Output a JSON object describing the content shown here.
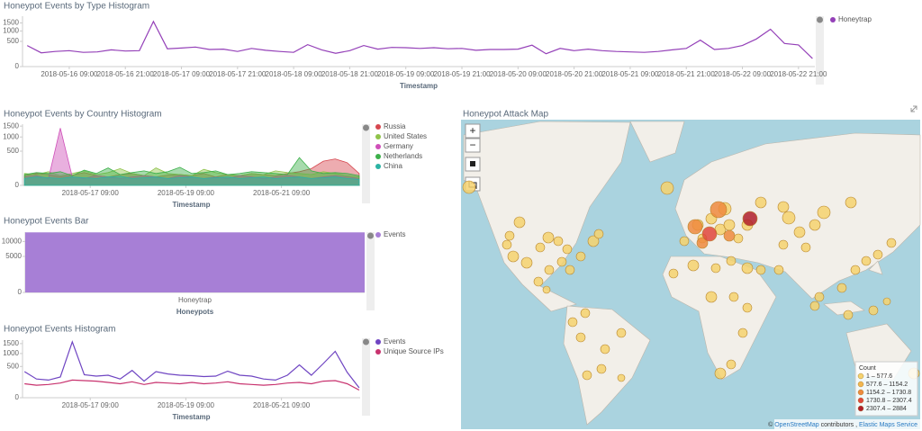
{
  "chart_data": [
    {
      "type": "line",
      "title": "Honeypot Events by Type Histogram",
      "xlabel": "Timestamp",
      "scale": "sqrt",
      "x": [
        "2018-05-16 00:00",
        "2018-05-16 03:00",
        "2018-05-16 06:00",
        "2018-05-16 09:00",
        "2018-05-16 12:00",
        "2018-05-16 15:00",
        "2018-05-16 18:00",
        "2018-05-16 21:00",
        "2018-05-17 00:00",
        "2018-05-17 03:00",
        "2018-05-17 06:00",
        "2018-05-17 09:00",
        "2018-05-17 12:00",
        "2018-05-17 15:00",
        "2018-05-17 18:00",
        "2018-05-17 21:00",
        "2018-05-18 00:00",
        "2018-05-18 03:00",
        "2018-05-18 06:00",
        "2018-05-18 09:00",
        "2018-05-18 12:00",
        "2018-05-18 15:00",
        "2018-05-18 18:00",
        "2018-05-18 21:00",
        "2018-05-19 00:00",
        "2018-05-19 03:00",
        "2018-05-19 06:00",
        "2018-05-19 09:00",
        "2018-05-19 12:00",
        "2018-05-19 15:00",
        "2018-05-19 18:00",
        "2018-05-19 21:00",
        "2018-05-20 00:00",
        "2018-05-20 03:00",
        "2018-05-20 06:00",
        "2018-05-20 09:00",
        "2018-05-20 12:00",
        "2018-05-20 15:00",
        "2018-05-20 18:00",
        "2018-05-20 21:00",
        "2018-05-21 00:00",
        "2018-05-21 03:00",
        "2018-05-21 06:00",
        "2018-05-21 09:00",
        "2018-05-21 12:00",
        "2018-05-21 15:00",
        "2018-05-21 18:00",
        "2018-05-21 21:00",
        "2018-05-22 00:00",
        "2018-05-22 03:00",
        "2018-05-22 06:00",
        "2018-05-22 09:00",
        "2018-05-22 12:00",
        "2018-05-22 15:00",
        "2018-05-22 18:00",
        "2018-05-22 21:00",
        "2018-05-23 00:00"
      ],
      "xlim": [
        "2018-05-15 23:00",
        "2018-05-23 00:30"
      ],
      "xticks": [
        "2018-05-16 09:00",
        "2018-05-16 21:00",
        "2018-05-17 09:00",
        "2018-05-17 21:00",
        "2018-05-18 09:00",
        "2018-05-18 21:00",
        "2018-05-19 09:00",
        "2018-05-19 21:00",
        "2018-05-20 09:00",
        "2018-05-20 21:00",
        "2018-05-21 09:00",
        "2018-05-21 21:00",
        "2018-05-22 09:00",
        "2018-05-22 21:00"
      ],
      "ylim": [
        0,
        2000
      ],
      "yticks": [
        0,
        500,
        1000,
        1500
      ],
      "series": [
        {
          "name": "Honeytrap",
          "color": "#9440b8",
          "values": [
            350,
            150,
            180,
            200,
            160,
            170,
            220,
            190,
            200,
            1600,
            250,
            270,
            300,
            230,
            240,
            180,
            260,
            210,
            180,
            160,
            380,
            220,
            140,
            200,
            350,
            240,
            290,
            280,
            260,
            280,
            250,
            260,
            210,
            230,
            230,
            240,
            360,
            130,
            260,
            200,
            240,
            200,
            180,
            170,
            160,
            180,
            220,
            260,
            550,
            230,
            260,
            350,
            600,
            1100,
            420,
            370,
            50
          ]
        }
      ]
    },
    {
      "type": "area",
      "title": "Honeypot Events by Country Histogram",
      "xlabel": "Timestamp",
      "scale": "sqrt",
      "x": [
        "2018-05-16 00:00",
        "2018-05-16 06:00",
        "2018-05-16 12:00",
        "2018-05-16 18:00",
        "2018-05-17 00:00",
        "2018-05-17 06:00",
        "2018-05-17 12:00",
        "2018-05-17 18:00",
        "2018-05-18 00:00",
        "2018-05-18 06:00",
        "2018-05-18 12:00",
        "2018-05-18 18:00",
        "2018-05-19 00:00",
        "2018-05-19 06:00",
        "2018-05-19 12:00",
        "2018-05-19 18:00",
        "2018-05-20 00:00",
        "2018-05-20 06:00",
        "2018-05-20 12:00",
        "2018-05-20 18:00",
        "2018-05-21 00:00",
        "2018-05-21 06:00",
        "2018-05-21 12:00",
        "2018-05-21 18:00",
        "2018-05-22 00:00",
        "2018-05-22 06:00",
        "2018-05-22 12:00",
        "2018-05-22 18:00",
        "2018-05-23 00:00"
      ],
      "xlim": [
        "2018-05-15 23:00",
        "2018-05-23 00:30"
      ],
      "xticks": [
        "2018-05-17 09:00",
        "2018-05-19 09:00",
        "2018-05-21 09:00"
      ],
      "ylim": [
        0,
        1600
      ],
      "yticks": [
        0,
        500,
        1000,
        1500
      ],
      "series": [
        {
          "name": "Russia",
          "color": "#d6474f",
          "values": [
            40,
            60,
            50,
            30,
            45,
            70,
            40,
            30,
            50,
            60,
            40,
            30,
            45,
            50,
            40,
            60,
            30,
            50,
            40,
            60,
            50,
            40,
            60,
            80,
            120,
            250,
            300,
            220,
            60
          ]
        },
        {
          "name": "United States",
          "color": "#8fc34a",
          "values": [
            60,
            50,
            80,
            40,
            60,
            90,
            50,
            70,
            120,
            60,
            40,
            130,
            60,
            50,
            40,
            110,
            70,
            50,
            40,
            60,
            50,
            90,
            70,
            60,
            50,
            80,
            60,
            40,
            30
          ]
        },
        {
          "name": "Germany",
          "color": "#cf4fb9",
          "values": [
            30,
            40,
            20,
            1400,
            30,
            20,
            40,
            30,
            20,
            30,
            40,
            30,
            20,
            40,
            30,
            20,
            30,
            20,
            40,
            30,
            20,
            30,
            40,
            30,
            20,
            30,
            40,
            30,
            20
          ]
        },
        {
          "name": "Netherlands",
          "color": "#3cb04a",
          "values": [
            50,
            70,
            60,
            80,
            40,
            100,
            60,
            130,
            50,
            70,
            90,
            60,
            80,
            140,
            60,
            70,
            90,
            50,
            60,
            80,
            70,
            60,
            50,
            330,
            90,
            60,
            70,
            60,
            40
          ]
        },
        {
          "name": "China",
          "color": "#2bb3a4",
          "values": [
            20,
            30,
            25,
            20,
            30,
            25,
            20,
            30,
            35,
            20,
            25,
            30,
            20,
            25,
            30,
            20,
            25,
            30,
            20,
            25,
            30,
            20,
            25,
            30,
            20,
            25,
            30,
            20,
            15
          ]
        }
      ]
    },
    {
      "type": "bar",
      "title": "Honeypot Events Bar",
      "xlabel": "Honeypots",
      "scale": "sqrt",
      "categories": [
        "Honeytrap"
      ],
      "ylim": [
        0,
        14000
      ],
      "yticks": [
        0,
        5000,
        10000
      ],
      "series": [
        {
          "name": "Events",
          "color": "#a77fd6",
          "values": [
            13900
          ]
        }
      ]
    },
    {
      "type": "line",
      "title": "Honeypot Events Histogram",
      "xlabel": "Timestamp",
      "scale": "sqrt",
      "x": [
        "2018-05-16 00:00",
        "2018-05-16 06:00",
        "2018-05-16 12:00",
        "2018-05-16 18:00",
        "2018-05-17 00:00",
        "2018-05-17 06:00",
        "2018-05-17 12:00",
        "2018-05-17 18:00",
        "2018-05-18 00:00",
        "2018-05-18 06:00",
        "2018-05-18 12:00",
        "2018-05-18 18:00",
        "2018-05-19 00:00",
        "2018-05-19 06:00",
        "2018-05-19 12:00",
        "2018-05-19 18:00",
        "2018-05-20 00:00",
        "2018-05-20 06:00",
        "2018-05-20 12:00",
        "2018-05-20 18:00",
        "2018-05-21 00:00",
        "2018-05-21 06:00",
        "2018-05-21 12:00",
        "2018-05-21 18:00",
        "2018-05-22 00:00",
        "2018-05-22 06:00",
        "2018-05-22 12:00",
        "2018-05-22 18:00",
        "2018-05-23 00:00"
      ],
      "xlim": [
        "2018-05-15 23:00",
        "2018-05-23 00:30"
      ],
      "xticks": [
        "2018-05-17 09:00",
        "2018-05-19 09:00",
        "2018-05-21 09:00"
      ],
      "ylim": [
        0,
        1700
      ],
      "yticks": [
        0,
        500,
        1000,
        1500
      ],
      "series": [
        {
          "name": "Events",
          "color": "#6f45c2",
          "values": [
            350,
            180,
            160,
            220,
            1600,
            270,
            240,
            260,
            180,
            380,
            140,
            350,
            290,
            260,
            250,
            230,
            240,
            360,
            260,
            240,
            180,
            160,
            260,
            550,
            260,
            600,
            1100,
            330,
            50
          ]
        },
        {
          "name": "Unique Source IPs",
          "color": "#c8326e",
          "values": [
            100,
            80,
            90,
            110,
            160,
            150,
            140,
            120,
            100,
            130,
            90,
            120,
            110,
            100,
            120,
            100,
            110,
            130,
            100,
            90,
            80,
            90,
            110,
            120,
            100,
            140,
            150,
            100,
            30
          ]
        }
      ]
    }
  ],
  "map": {
    "title": "Honeypot Attack Map",
    "controls": [
      "+",
      "−"
    ],
    "legend": {
      "title": "Count",
      "ranges": [
        "1 – 577.6",
        "577.6 – 1154.2",
        "1154.2 – 1730.8",
        "1730.8 – 2307.4",
        "2307.4 – 2884"
      ],
      "colors": [
        "#f6d26e",
        "#f3b64f",
        "#ee8a3e",
        "#e0463c",
        "#b01e2b"
      ]
    },
    "attribution": [
      "©",
      "OpenStreetMap",
      "contributors ,",
      "Elastic Maps Service"
    ]
  }
}
